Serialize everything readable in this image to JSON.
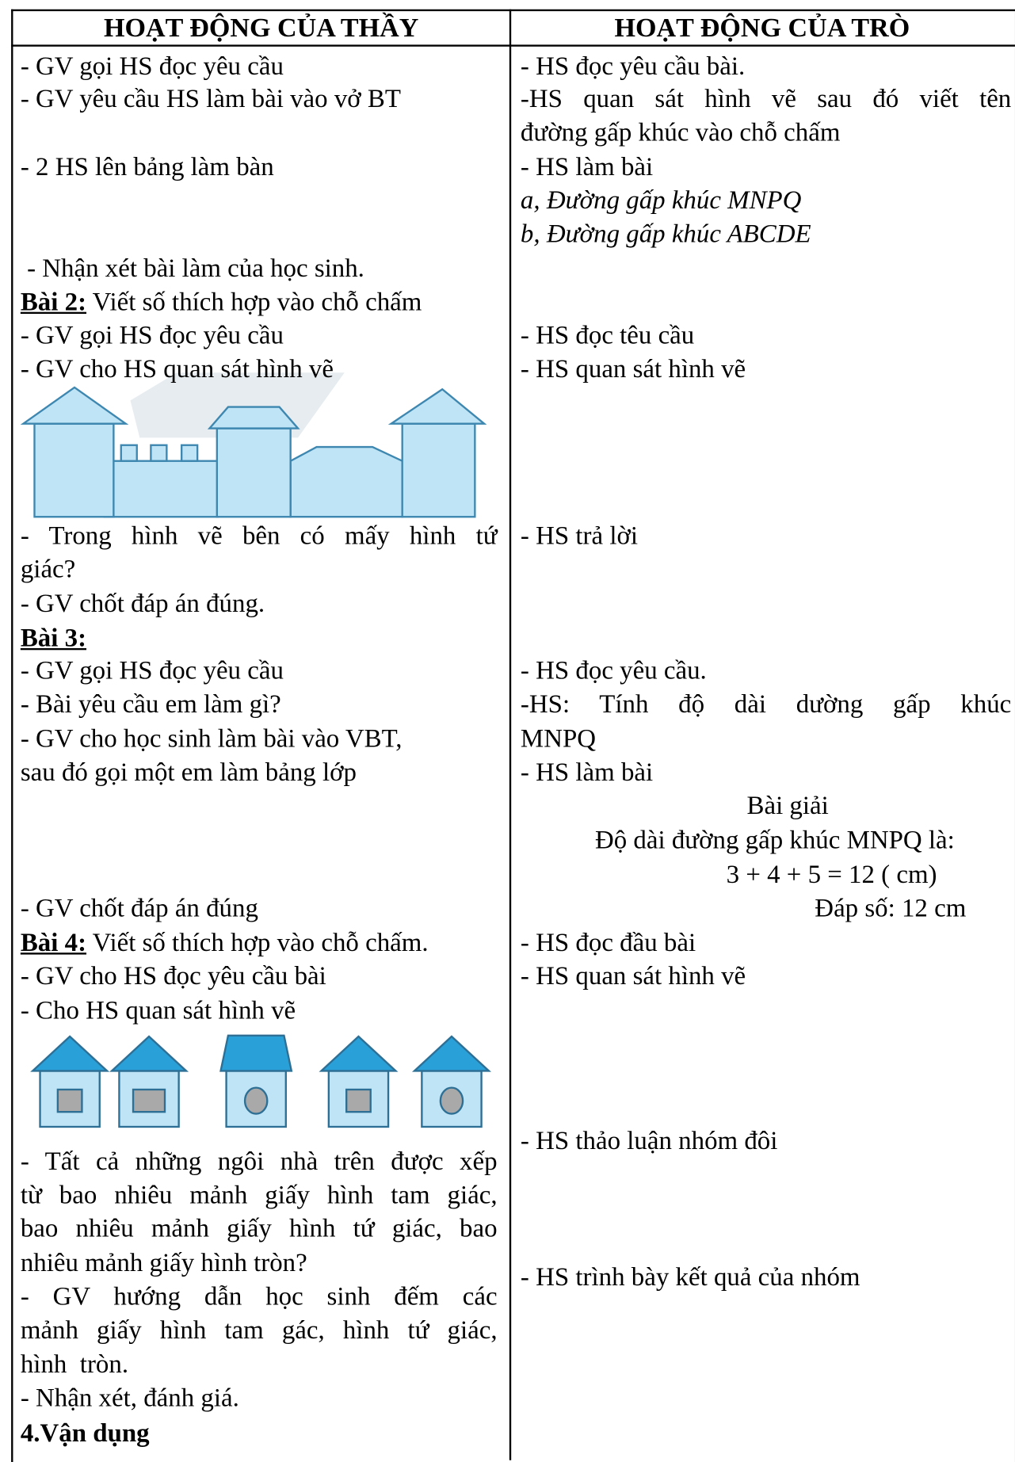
{
  "header": {
    "left": "HOẠT ĐỘNG CỦA THẦY",
    "right": "HOẠT ĐỘNG CỦA TRÒ"
  },
  "left": [
    "- GV gọi HS đọc yêu cầu",
    "- GV yêu cầu HS làm bài vào vở BT",
    "- 2 HS lên bảng làm bàn",
    " - Nhận xét bài làm của học sinh.",
    {
      "label": "Bài 2:",
      "text": " Viết số thích hợp vào chỗ chấm"
    },
    "- GV gọi HS đọc yêu cầu",
    "- GV cho HS quan sát hình vẽ",
    "- Trong hình vẽ bên có mấy hình tứ",
    "giác?",
    "- GV chốt đáp án đúng.",
    {
      "label": "Bài 3:"
    },
    "- GV gọi HS đọc yêu cầu",
    "- Bài yêu cầu em làm gì?",
    "- GV cho học sinh làm bài vào VBT,",
    "sau đó gọi một em làm bảng lớp",
    "- GV chốt đáp án đúng",
    {
      "label": "Bài 4:",
      "text": " Viết số thích hợp vào chỗ chấm."
    },
    "- GV cho HS đọc yêu cầu bài",
    "- Cho HS quan sát hình vẽ",
    "- Tất cả những ngôi nhà trên được xếp",
    "từ bao nhiêu mảnh giấy hình tam giác,",
    "bao nhiêu mảnh giấy hình tứ giác, bao",
    "nhiêu mảnh giấy hình tròn?",
    "- GV hướng dẫn học sinh  đếm các",
    "mảnh giấy hình tam gác, hình tứ giác,",
    "hình  tròn.",
    "- Nhận xét, đánh giá.",
    "4.Vận dụng"
  ],
  "right": [
    "- HS đọc yêu cầu bài.",
    "-HS quan sát hình vẽ sau đó viết tên",
    "đường gấp khúc vào chỗ chấm",
    "- HS làm bài",
    "a, Đường gấp khúc MNPQ",
    "b, Đường gấp khúc ABCDE",
    "- HS đọc têu cầu",
    "- HS quan sát hình vẽ",
    "- HS trả lời",
    "- HS đọc yêu cầu.",
    "-HS: Tính độ dài dường gấp khúc",
    "MNPQ",
    "- HS làm bài",
    "Bài giải",
    "Độ dài đường gấp khúc MNPQ là:",
    "3 + 4 + 5 = 12 ( cm)",
    "Đáp số: 12 cm",
    "- HS đọc đầu bài",
    "- HS quan sát hình vẽ",
    "- HS thảo luận nhóm đôi",
    "- HS trình bày kết quả của nhóm"
  ]
}
